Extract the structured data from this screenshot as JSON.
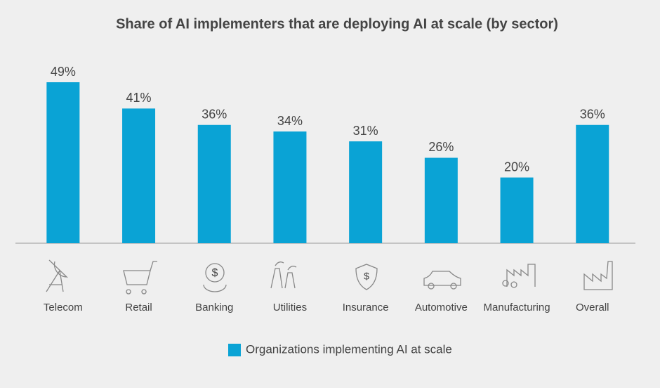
{
  "chart_data": {
    "type": "bar",
    "title": "Share of AI implementers that are deploying AI at scale (by sector)",
    "categories": [
      "Telecom",
      "Retail",
      "Banking",
      "Utilities",
      "Insurance",
      "Automotive",
      "Manufacturing",
      "Overall"
    ],
    "series": [
      {
        "name": "Organizations implementing AI at scale",
        "color": "#0aa3d5",
        "values": [
          49,
          41,
          36,
          34,
          31,
          26,
          20,
          36
        ],
        "value_labels": [
          "49%",
          "41%",
          "36%",
          "34%",
          "31%",
          "26%",
          "20%",
          "36%"
        ]
      }
    ],
    "legend": "bottom"
  }
}
